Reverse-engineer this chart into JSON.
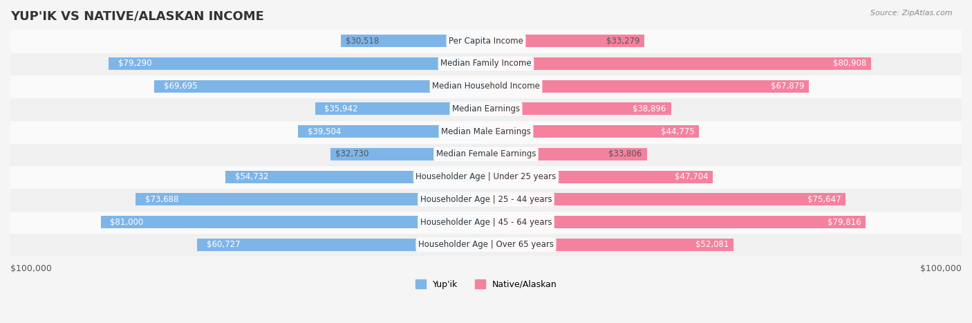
{
  "title": "YUP'IK VS NATIVE/ALASKAN INCOME",
  "source": "Source: ZipAtlas.com",
  "categories": [
    "Per Capita Income",
    "Median Family Income",
    "Median Household Income",
    "Median Earnings",
    "Median Male Earnings",
    "Median Female Earnings",
    "Householder Age | Under 25 years",
    "Householder Age | 25 - 44 years",
    "Householder Age | 45 - 64 years",
    "Householder Age | Over 65 years"
  ],
  "yupik_values": [
    30518,
    79290,
    69695,
    35942,
    39504,
    32730,
    54732,
    73688,
    81000,
    60727
  ],
  "native_values": [
    33279,
    80908,
    67879,
    38896,
    44775,
    33806,
    47704,
    75647,
    79816,
    52081
  ],
  "yupik_labels": [
    "$30,518",
    "$79,290",
    "$69,695",
    "$35,942",
    "$39,504",
    "$32,730",
    "$54,732",
    "$73,688",
    "$81,000",
    "$60,727"
  ],
  "native_labels": [
    "$33,279",
    "$80,908",
    "$67,879",
    "$38,896",
    "$44,775",
    "$33,806",
    "$47,704",
    "$75,647",
    "$79,816",
    "$52,081"
  ],
  "max_value": 100000,
  "yupik_color": "#7EB5E8",
  "native_color": "#F4819E",
  "yupik_color_dark": "#5B9BD5",
  "native_color_dark": "#F06090",
  "yupik_label_color_dark": "#5B9BD5",
  "native_label_color_dark": "#E85080",
  "bg_color": "#f5f5f5",
  "bar_bg_color": "#e8e8e8",
  "row_bg_even": "#f0f0f0",
  "row_bg_odd": "#fafafa",
  "xlabel_left": "$100,000",
  "xlabel_right": "$100,000",
  "legend_yupik": "Yup'ik",
  "legend_native": "Native/Alaskan",
  "title_fontsize": 13,
  "label_fontsize": 8.5,
  "bar_height": 0.55,
  "category_fontsize": 8.5
}
